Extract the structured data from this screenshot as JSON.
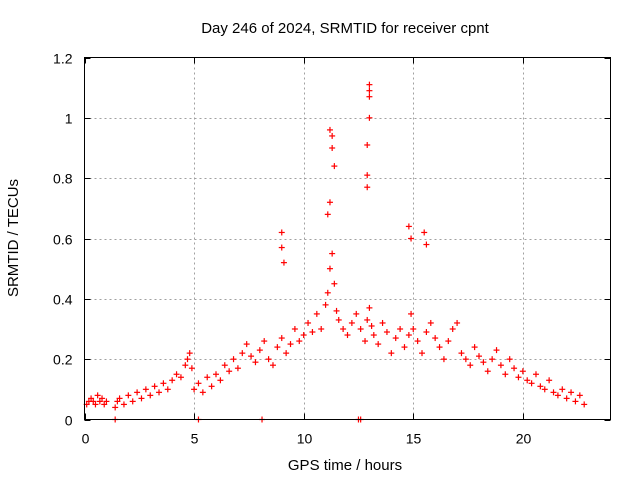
{
  "chart_data": {
    "type": "scatter",
    "title": "Day 246 of 2024, SRMTID for receiver cpnt",
    "xlabel": "GPS time / hours",
    "ylabel": "SRMTID / TECUs",
    "xlim": [
      0,
      24
    ],
    "ylim": [
      0,
      1.2
    ],
    "xticks": [
      0,
      5,
      10,
      15,
      20
    ],
    "xtick_labels": [
      "0",
      "5",
      "10",
      "15",
      "20"
    ],
    "yticks": [
      0,
      0.2,
      0.4,
      0.6,
      0.8,
      1.0,
      1.2
    ],
    "ytick_labels": [
      "0",
      "0.2",
      "0.4",
      "0.6",
      "0.8",
      "1",
      "1.2"
    ],
    "grid": true,
    "marker": "+",
    "color": "#ff0000",
    "series": [
      {
        "name": "SRMTID",
        "x": [
          0.1,
          0.2,
          0.3,
          0.4,
          0.5,
          0.6,
          0.7,
          0.8,
          0.9,
          1.0,
          1.4,
          1.5,
          1.6,
          1.8,
          2.0,
          2.2,
          2.4,
          2.6,
          2.8,
          3.0,
          3.2,
          3.4,
          3.6,
          3.8,
          4.0,
          4.2,
          4.4,
          4.6,
          4.7,
          4.8,
          4.9,
          5.0,
          5.2,
          5.4,
          5.6,
          5.8,
          6.0,
          6.2,
          6.4,
          6.6,
          6.8,
          7.0,
          7.2,
          7.4,
          7.6,
          7.8,
          8.0,
          8.2,
          8.4,
          8.6,
          8.8,
          9.0,
          9.2,
          9.4,
          9.6,
          9.8,
          10.0,
          10.2,
          10.4,
          10.6,
          10.8,
          11.0,
          11.1,
          11.2,
          11.3,
          11.4,
          11.5,
          11.6,
          11.8,
          12.0,
          12.2,
          12.4,
          12.6,
          12.8,
          12.9,
          13.0,
          13.1,
          13.2,
          13.4,
          13.6,
          13.8,
          14.0,
          14.2,
          14.4,
          14.6,
          14.8,
          14.9,
          15.0,
          15.2,
          15.4,
          15.6,
          15.8,
          16.0,
          16.2,
          16.4,
          16.6,
          16.8,
          17.0,
          17.2,
          17.4,
          17.6,
          17.8,
          18.0,
          18.2,
          18.4,
          18.6,
          18.8,
          19.0,
          19.2,
          19.4,
          19.6,
          19.8,
          20.0,
          20.2,
          20.4,
          20.6,
          20.8,
          21.0,
          21.2,
          21.4,
          21.6,
          21.8,
          22.0,
          22.2,
          22.4,
          22.6,
          22.8,
          9.0,
          9.0,
          9.1,
          11.1,
          11.2,
          11.2,
          11.3,
          11.3,
          11.4,
          12.9,
          12.9,
          13.0,
          13.0,
          13.0,
          13.0,
          12.9,
          14.8,
          14.9,
          15.5,
          15.6,
          1.4,
          5.2,
          8.1,
          12.5,
          12.6
        ],
        "y": [
          0.05,
          0.06,
          0.07,
          0.06,
          0.05,
          0.08,
          0.06,
          0.07,
          0.05,
          0.06,
          0.04,
          0.06,
          0.07,
          0.05,
          0.08,
          0.06,
          0.09,
          0.07,
          0.1,
          0.08,
          0.11,
          0.09,
          0.12,
          0.1,
          0.13,
          0.15,
          0.14,
          0.18,
          0.2,
          0.22,
          0.17,
          0.1,
          0.12,
          0.09,
          0.14,
          0.11,
          0.15,
          0.13,
          0.18,
          0.16,
          0.2,
          0.17,
          0.22,
          0.25,
          0.21,
          0.19,
          0.23,
          0.26,
          0.2,
          0.18,
          0.24,
          0.27,
          0.22,
          0.25,
          0.3,
          0.26,
          0.28,
          0.32,
          0.29,
          0.35,
          0.3,
          0.38,
          0.42,
          0.5,
          0.55,
          0.45,
          0.36,
          0.33,
          0.3,
          0.28,
          0.32,
          0.35,
          0.3,
          0.26,
          0.33,
          0.37,
          0.31,
          0.28,
          0.25,
          0.32,
          0.29,
          0.22,
          0.27,
          0.3,
          0.24,
          0.28,
          0.35,
          0.3,
          0.26,
          0.22,
          0.29,
          0.32,
          0.27,
          0.24,
          0.2,
          0.26,
          0.3,
          0.32,
          0.22,
          0.2,
          0.18,
          0.24,
          0.21,
          0.19,
          0.16,
          0.2,
          0.23,
          0.18,
          0.15,
          0.2,
          0.17,
          0.14,
          0.16,
          0.13,
          0.12,
          0.15,
          0.11,
          0.1,
          0.13,
          0.09,
          0.08,
          0.1,
          0.07,
          0.09,
          0.06,
          0.08,
          0.05,
          0.62,
          0.57,
          0.52,
          0.68,
          0.72,
          0.96,
          0.94,
          0.9,
          0.84,
          0.81,
          0.77,
          1.11,
          1.09,
          1.07,
          1.0,
          0.91,
          0.64,
          0.6,
          0.62,
          0.58,
          0.0,
          0.0,
          0.0,
          0.0,
          0.0
        ]
      }
    ]
  }
}
